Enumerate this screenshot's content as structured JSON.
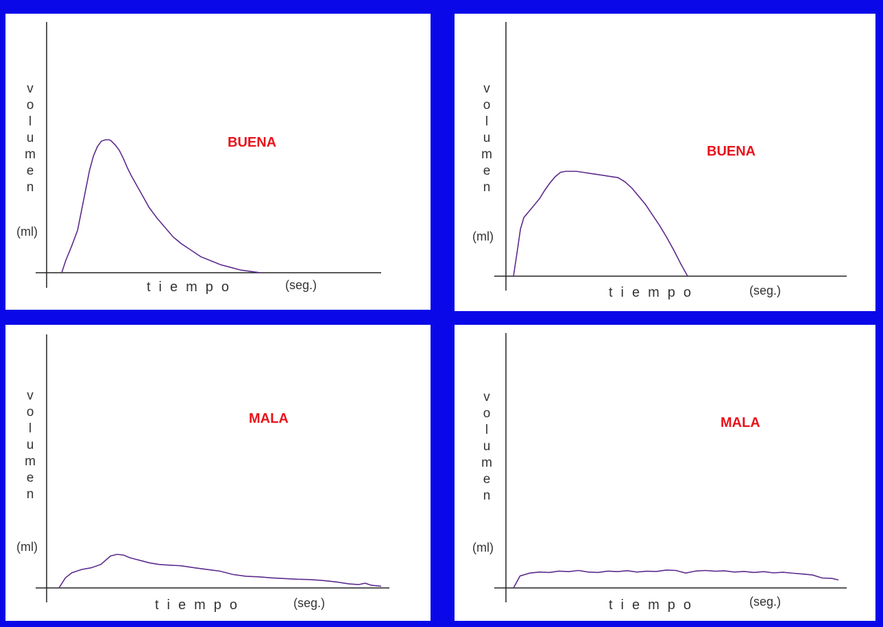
{
  "chart_data": [
    {
      "type": "line",
      "annotation": "BUENA",
      "ylabel": "volumen",
      "ylabel_unit": "(ml)",
      "xlabel": "tiempo",
      "xlabel_unit": "(seg.)",
      "color": "#5b2a8c",
      "x": [
        0.0,
        0.02,
        0.05,
        0.08,
        0.1,
        0.12,
        0.14,
        0.16,
        0.18,
        0.2,
        0.22,
        0.24,
        0.25,
        0.27,
        0.29,
        0.31,
        0.33,
        0.35,
        0.38,
        0.41,
        0.44,
        0.48,
        0.52,
        0.56,
        0.6,
        0.65,
        0.7,
        0.75,
        0.8,
        0.85,
        0.9,
        0.95,
        1.0
      ],
      "values": [
        0.0,
        0.09,
        0.2,
        0.32,
        0.47,
        0.62,
        0.77,
        0.88,
        0.95,
        0.99,
        1.0,
        1.0,
        0.99,
        0.96,
        0.92,
        0.86,
        0.79,
        0.73,
        0.65,
        0.57,
        0.49,
        0.41,
        0.34,
        0.27,
        0.22,
        0.17,
        0.12,
        0.09,
        0.06,
        0.04,
        0.02,
        0.01,
        0.0
      ]
    },
    {
      "type": "line",
      "annotation": "BUENA",
      "ylabel": "volumen",
      "ylabel_unit": "(ml)",
      "xlabel": "tiempo",
      "xlabel_unit": "(seg.)",
      "color": "#5b2a8c",
      "x": [
        0.0,
        0.02,
        0.04,
        0.06,
        0.09,
        0.12,
        0.15,
        0.18,
        0.21,
        0.24,
        0.27,
        0.3,
        0.33,
        0.36,
        0.4,
        0.44,
        0.48,
        0.52,
        0.56,
        0.6,
        0.64,
        0.68,
        0.72,
        0.76,
        0.8,
        0.84,
        0.88,
        0.92,
        0.96,
        1.0
      ],
      "values": [
        0.0,
        0.22,
        0.45,
        0.56,
        0.62,
        0.68,
        0.74,
        0.82,
        0.89,
        0.95,
        0.99,
        1.0,
        1.0,
        1.0,
        0.99,
        0.98,
        0.97,
        0.96,
        0.95,
        0.94,
        0.9,
        0.84,
        0.76,
        0.68,
        0.58,
        0.48,
        0.37,
        0.25,
        0.12,
        0.0
      ]
    },
    {
      "type": "line",
      "annotation": "MALA",
      "ylabel": "volumen",
      "ylabel_unit": "(ml)",
      "xlabel": "tiempo",
      "xlabel_unit": "(seg.)",
      "color": "#5b2a8c",
      "x": [
        0.0,
        0.02,
        0.04,
        0.07,
        0.1,
        0.13,
        0.16,
        0.18,
        0.2,
        0.22,
        0.24,
        0.26,
        0.28,
        0.31,
        0.34,
        0.38,
        0.42,
        0.46,
        0.5,
        0.54,
        0.58,
        0.62,
        0.66,
        0.7,
        0.74,
        0.78,
        0.82,
        0.86,
        0.9,
        0.93,
        0.95,
        0.97,
        1.0
      ],
      "values": [
        0.0,
        0.3,
        0.45,
        0.55,
        0.6,
        0.7,
        0.95,
        1.0,
        0.98,
        0.9,
        0.85,
        0.8,
        0.75,
        0.7,
        0.68,
        0.66,
        0.6,
        0.55,
        0.5,
        0.4,
        0.35,
        0.33,
        0.3,
        0.28,
        0.26,
        0.25,
        0.22,
        0.18,
        0.12,
        0.1,
        0.14,
        0.08,
        0.05
      ]
    },
    {
      "type": "line",
      "annotation": "MALA",
      "ylabel": "volumen",
      "ylabel_unit": "(ml)",
      "xlabel": "tiempo",
      "xlabel_unit": "(seg.)",
      "color": "#5b2a8c",
      "x": [
        0.0,
        0.02,
        0.05,
        0.08,
        0.11,
        0.14,
        0.17,
        0.2,
        0.23,
        0.26,
        0.29,
        0.32,
        0.35,
        0.38,
        0.41,
        0.44,
        0.47,
        0.5,
        0.53,
        0.56,
        0.59,
        0.62,
        0.65,
        0.68,
        0.71,
        0.74,
        0.77,
        0.8,
        0.83,
        0.86,
        0.89,
        0.92,
        0.95,
        0.98,
        1.0
      ],
      "values": [
        0.0,
        0.6,
        0.75,
        0.8,
        0.78,
        0.85,
        0.82,
        0.88,
        0.8,
        0.78,
        0.85,
        0.82,
        0.87,
        0.8,
        0.84,
        0.83,
        0.9,
        0.88,
        0.75,
        0.85,
        0.88,
        0.84,
        0.86,
        0.8,
        0.83,
        0.78,
        0.82,
        0.76,
        0.79,
        0.74,
        0.7,
        0.65,
        0.5,
        0.48,
        0.4
      ]
    }
  ]
}
